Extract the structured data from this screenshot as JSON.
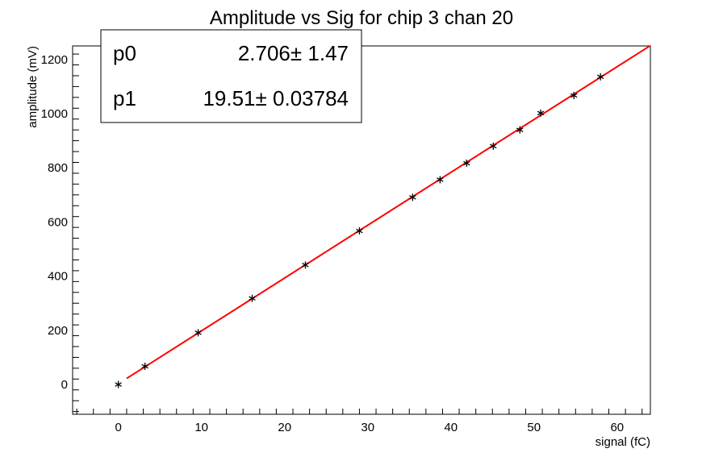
{
  "chart_data": {
    "type": "scatter",
    "title": "Amplitude vs Sig for chip 3 chan 20",
    "xlabel": "signal (fC)",
    "ylabel": "amplitude (mV)",
    "xlim": [
      -5.5,
      64
    ],
    "ylim": [
      -110,
      1250
    ],
    "x_ticks": [
      0,
      10,
      20,
      30,
      40,
      50,
      60
    ],
    "y_ticks": [
      0,
      200,
      400,
      600,
      800,
      1000,
      1200
    ],
    "grid": false,
    "marker": "asterisk",
    "marker_color": "#000000",
    "points": [
      {
        "x": 0.0,
        "y": 0
      },
      {
        "x": 3.2,
        "y": 67
      },
      {
        "x": 9.6,
        "y": 191
      },
      {
        "x": 16.1,
        "y": 318
      },
      {
        "x": 22.5,
        "y": 441
      },
      {
        "x": 29.0,
        "y": 567
      },
      {
        "x": 35.4,
        "y": 691
      },
      {
        "x": 38.7,
        "y": 756
      },
      {
        "x": 41.9,
        "y": 817
      },
      {
        "x": 45.1,
        "y": 880
      },
      {
        "x": 48.3,
        "y": 940
      },
      {
        "x": 50.8,
        "y": 1002
      },
      {
        "x": 54.8,
        "y": 1067
      },
      {
        "x": 58.0,
        "y": 1136
      }
    ],
    "fit": {
      "color": "#ff0000",
      "p0": 2.706,
      "p1": 19.51,
      "x_range": [
        1.0,
        64
      ]
    },
    "stats_box": {
      "placement": "top-left",
      "rows": [
        {
          "name": "p0",
          "value": "2.706±  1.47"
        },
        {
          "name": "p1",
          "value": "19.51± 0.03784"
        }
      ]
    }
  }
}
